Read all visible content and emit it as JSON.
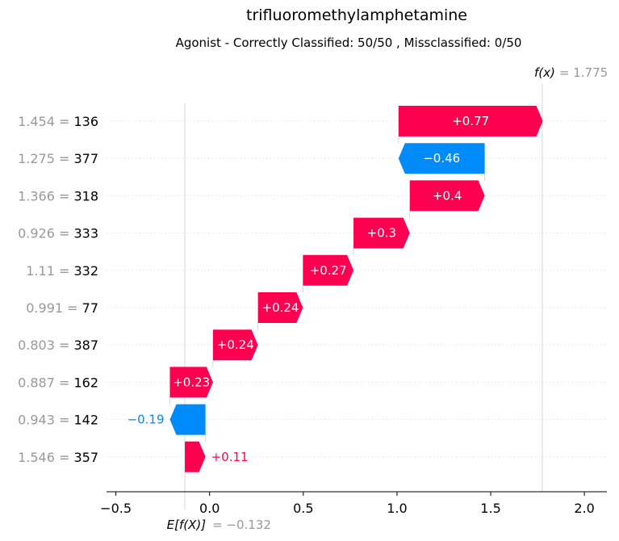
{
  "chart_data": {
    "type": "waterfall",
    "title": "trifluoromethylamphetamine",
    "subtitle": "Agonist - Correctly Classified: 50/50 , Missclassified: 0/50",
    "base_value": -0.132,
    "base_label": "E[f(X)]",
    "base_value_text": "= −0.132",
    "output_value": 1.775,
    "output_label": "f(x)",
    "output_value_text": "= 1.775",
    "xlim": [
      -0.55,
      2.12
    ],
    "xticks": [
      -0.5,
      0.0,
      0.5,
      1.0,
      1.5,
      2.0
    ],
    "xtick_labels": [
      "−0.5",
      "0.0",
      "0.5",
      "1.0",
      "1.5",
      "2.0"
    ],
    "features": [
      {
        "feature_value": "1.454 =",
        "name": "136",
        "contribution": 0.77,
        "label": "+0.77"
      },
      {
        "feature_value": "1.275 =",
        "name": "377",
        "contribution": -0.46,
        "label": "−0.46"
      },
      {
        "feature_value": "1.366 =",
        "name": "318",
        "contribution": 0.4,
        "label": "+0.4"
      },
      {
        "feature_value": "0.926 =",
        "name": "333",
        "contribution": 0.3,
        "label": "+0.3"
      },
      {
        "feature_value": "1.11 =",
        "name": "332",
        "contribution": 0.27,
        "label": "+0.27"
      },
      {
        "feature_value": "0.991 =",
        "name": "77",
        "contribution": 0.24,
        "label": "+0.24"
      },
      {
        "feature_value": "0.803 =",
        "name": "387",
        "contribution": 0.24,
        "label": "+0.24"
      },
      {
        "feature_value": "0.887 =",
        "name": "162",
        "contribution": 0.23,
        "label": "+0.23"
      },
      {
        "feature_value": "0.943 =",
        "name": "142",
        "contribution": -0.19,
        "label": "−0.19"
      },
      {
        "feature_value": "1.546 =",
        "name": "357",
        "contribution": 0.11,
        "label": "+0.11"
      }
    ],
    "colors": {
      "positive": "#ff0051",
      "negative": "#008bfb",
      "grid": "#cccccc",
      "muted": "#999999"
    }
  }
}
